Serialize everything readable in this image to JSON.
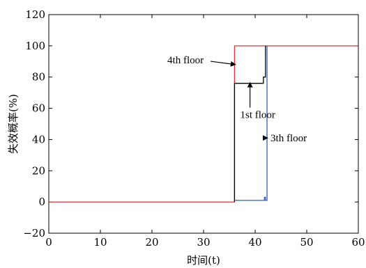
{
  "chart_data": {
    "type": "line",
    "title": "",
    "xlabel": "时间(t)",
    "ylabel": "失效概率(%)",
    "xlim": [
      0,
      60
    ],
    "ylim": [
      -20,
      120
    ],
    "x_ticks": [
      0,
      10,
      20,
      30,
      40,
      50,
      60
    ],
    "y_ticks": [
      -20,
      0,
      20,
      40,
      60,
      80,
      100,
      120
    ],
    "x_tick_labels": [
      "0",
      "10",
      "20",
      "30",
      "40",
      "50",
      "60"
    ],
    "y_tick_labels": [
      "−20",
      "0",
      "20",
      "40",
      "60",
      "80",
      "100",
      "120"
    ],
    "grid": false,
    "legend": "none",
    "series": [
      {
        "name": "4th floor",
        "color": "#e0303a",
        "x": [
          0,
          36.0,
          36.0,
          60
        ],
        "y": [
          0,
          0,
          100,
          100
        ]
      },
      {
        "name": "1st floor",
        "color": "#000000",
        "x": [
          36.0,
          36.0,
          41.6,
          41.6,
          42.0,
          42.0
        ],
        "y": [
          0,
          76,
          76,
          80,
          80,
          100
        ]
      },
      {
        "name": "3th floor",
        "color": "#2f5fb8",
        "x": [
          36.0,
          41.8,
          41.8,
          42.0,
          42.0,
          42.3,
          42.3
        ],
        "y": [
          1,
          1,
          3,
          3,
          1,
          1,
          100
        ]
      }
    ],
    "annotations": [
      {
        "text": "4th floor",
        "x": 26.5,
        "y": 91,
        "arrow_to_x": 36.2,
        "arrow_to_y": 88
      },
      {
        "text": "1st floor",
        "x": 40.5,
        "y": 56,
        "arrow_to_x": 39.0,
        "arrow_to_y": 76.5
      },
      {
        "text": "3th floor",
        "x": 46.5,
        "y": 41,
        "arrow_to_x": 42.4,
        "arrow_to_y": 41
      }
    ]
  }
}
